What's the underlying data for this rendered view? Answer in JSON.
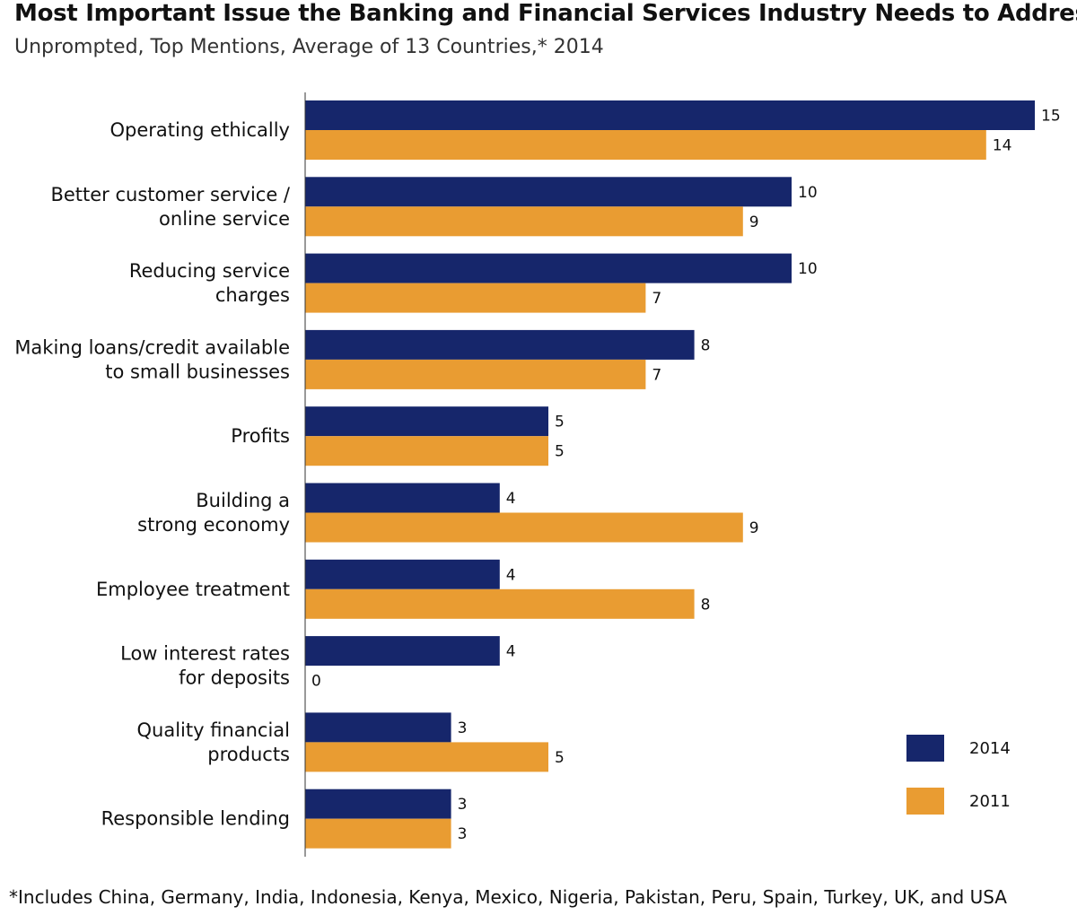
{
  "chart_data": {
    "type": "bar",
    "orientation": "horizontal",
    "title": "Most Important Issue the Banking and Financial Services Industry Needs to Address",
    "subtitle": "Unprompted, Top Mentions, Average of 13 Countries,* 2014",
    "footnote": "*Includes China, Germany, India, Indonesia, Kenya, Mexico, Nigeria, Pakistan, Peru, Spain, Turkey, UK, and USA",
    "categories": [
      [
        "Operating ethically"
      ],
      [
        "Better customer service /",
        "online service"
      ],
      [
        "Reducing service",
        "charges"
      ],
      [
        "Making loans/credit available",
        "to small businesses"
      ],
      [
        "Profits"
      ],
      [
        "Building a",
        "strong economy"
      ],
      [
        "Employee treatment"
      ],
      [
        "Low interest rates",
        "for deposits"
      ],
      [
        "Quality financial",
        "products"
      ],
      [
        "Responsible lending"
      ]
    ],
    "series": [
      {
        "name": "2014",
        "color": "#16266b",
        "values": [
          15,
          10,
          10,
          8,
          5,
          4,
          4,
          4,
          3,
          3
        ]
      },
      {
        "name": "2011",
        "color": "#e99c32",
        "values": [
          14,
          9,
          7,
          7,
          5,
          9,
          8,
          0,
          5,
          3
        ]
      }
    ],
    "xlim": [
      0,
      15
    ],
    "xlabel": "",
    "ylabel": "",
    "grid": false,
    "legend_position": "bottom-right"
  }
}
